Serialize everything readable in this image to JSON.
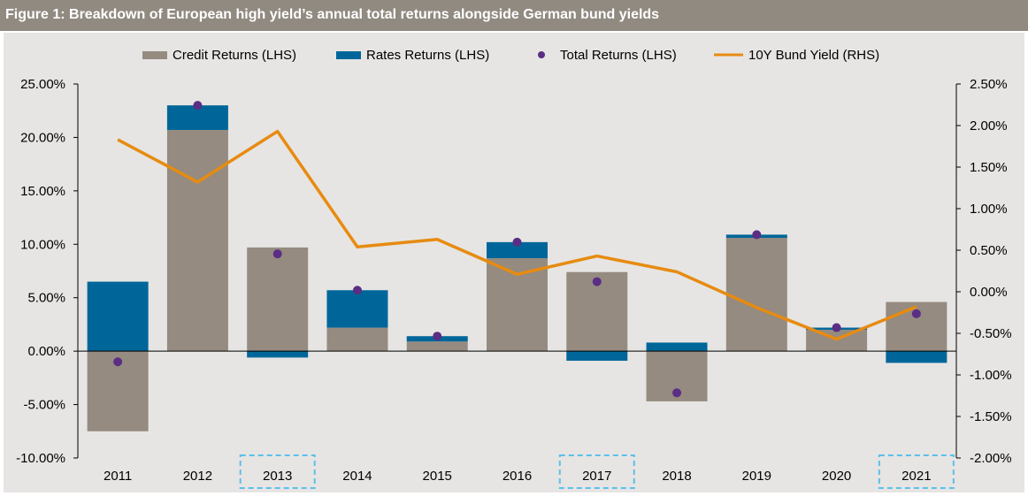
{
  "title": "Figure 1: Breakdown of European high yield’s annual total returns alongside German bund yields",
  "colors": {
    "title_bg": "#918a80",
    "plot_bg": "#e6e5e3",
    "credit": "#958b80",
    "rates": "#006699",
    "total": "#5b2d84",
    "yield": "#e78b11",
    "highlight": "#5bc0eb"
  },
  "chart_data": {
    "type": "bar",
    "categories": [
      "2011",
      "2012",
      "2013",
      "2014",
      "2015",
      "2016",
      "2017",
      "2018",
      "2019",
      "2020",
      "2021"
    ],
    "highlighted_categories": [
      "2013",
      "2017",
      "2021"
    ],
    "series": [
      {
        "name": "Credit Returns (LHS)",
        "kind": "stacked-bar",
        "axis": "left",
        "values": [
          -7.5,
          20.7,
          9.7,
          2.2,
          0.9,
          8.7,
          7.4,
          -4.7,
          10.6,
          2.0,
          4.6
        ]
      },
      {
        "name": "Rates Returns (LHS)",
        "kind": "stacked-bar",
        "axis": "left",
        "values": [
          6.5,
          2.3,
          -0.6,
          3.5,
          0.5,
          1.5,
          -0.9,
          0.8,
          0.3,
          0.2,
          -1.1
        ]
      },
      {
        "name": "Total Returns (LHS)",
        "kind": "scatter",
        "axis": "left",
        "values": [
          -1.0,
          23.0,
          9.1,
          5.7,
          1.4,
          10.2,
          6.5,
          -3.9,
          10.9,
          2.2,
          3.5
        ]
      },
      {
        "name": "10Y Bund Yield (RHS)",
        "kind": "line",
        "axis": "right",
        "values": [
          1.83,
          1.32,
          1.93,
          0.54,
          0.63,
          0.21,
          0.43,
          0.24,
          -0.19,
          -0.57,
          -0.18
        ]
      }
    ],
    "y_left": {
      "min": -10,
      "max": 25,
      "step": 5,
      "ticks": [
        "-10.00%",
        "-5.00%",
        "0.00%",
        "5.00%",
        "10.00%",
        "15.00%",
        "20.00%",
        "25.00%"
      ]
    },
    "y_right": {
      "min": -2,
      "max": 2.5,
      "step": 0.5,
      "ticks": [
        "-2.00%",
        "-1.50%",
        "-1.00%",
        "-0.50%",
        "0.00%",
        "0.50%",
        "1.00%",
        "1.50%",
        "2.00%",
        "2.50%"
      ]
    },
    "legend_position": "top",
    "grid": false
  }
}
